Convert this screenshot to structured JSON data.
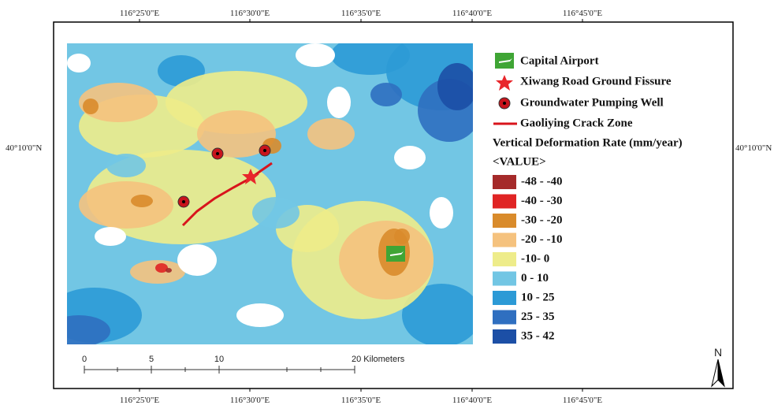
{
  "map": {
    "top_labels": [
      "116°25'0\"E",
      "116°30'0\"E",
      "116°35'0\"E",
      "116°40'0\"E",
      "116°45'0\"E"
    ],
    "bottom_labels": [
      "116°25'0\"E",
      "116°30'0\"E",
      "116°35'0\"E",
      "116°40'0\"E",
      "116°45'0\"E"
    ],
    "left_label": "40°10'0\"N",
    "right_label": "40°10'0\"N",
    "legend": {
      "features": [
        "Capital Airport",
        "Xiwang Road Ground Fissure",
        "Groundwater Pumping Well",
        "Gaoliying Crack Zone"
      ],
      "title": "Vertical Deformation Rate (mm/year)",
      "subtitle": "<VALUE>",
      "classes": [
        {
          "label": "-48 - -40",
          "color": "#a52a2a"
        },
        {
          "label": "-40 - -30",
          "color": "#e02424"
        },
        {
          "label": "-30 - -20",
          "color": "#d98b2b"
        },
        {
          "label": "-20 - -10",
          "color": "#f5c27e"
        },
        {
          "label": "-10- 0",
          "color": "#eeec8a"
        },
        {
          "label": "0 - 10",
          "color": "#72c6e4"
        },
        {
          "label": "10 - 25",
          "color": "#2c9ad6"
        },
        {
          "label": "25 - 35",
          "color": "#2f6fc0"
        },
        {
          "label": "35 - 42",
          "color": "#1c4fa6"
        }
      ]
    },
    "scale_bar": {
      "labels": [
        "0",
        "5",
        "10",
        "20 Kilometers"
      ]
    },
    "north": "N"
  }
}
